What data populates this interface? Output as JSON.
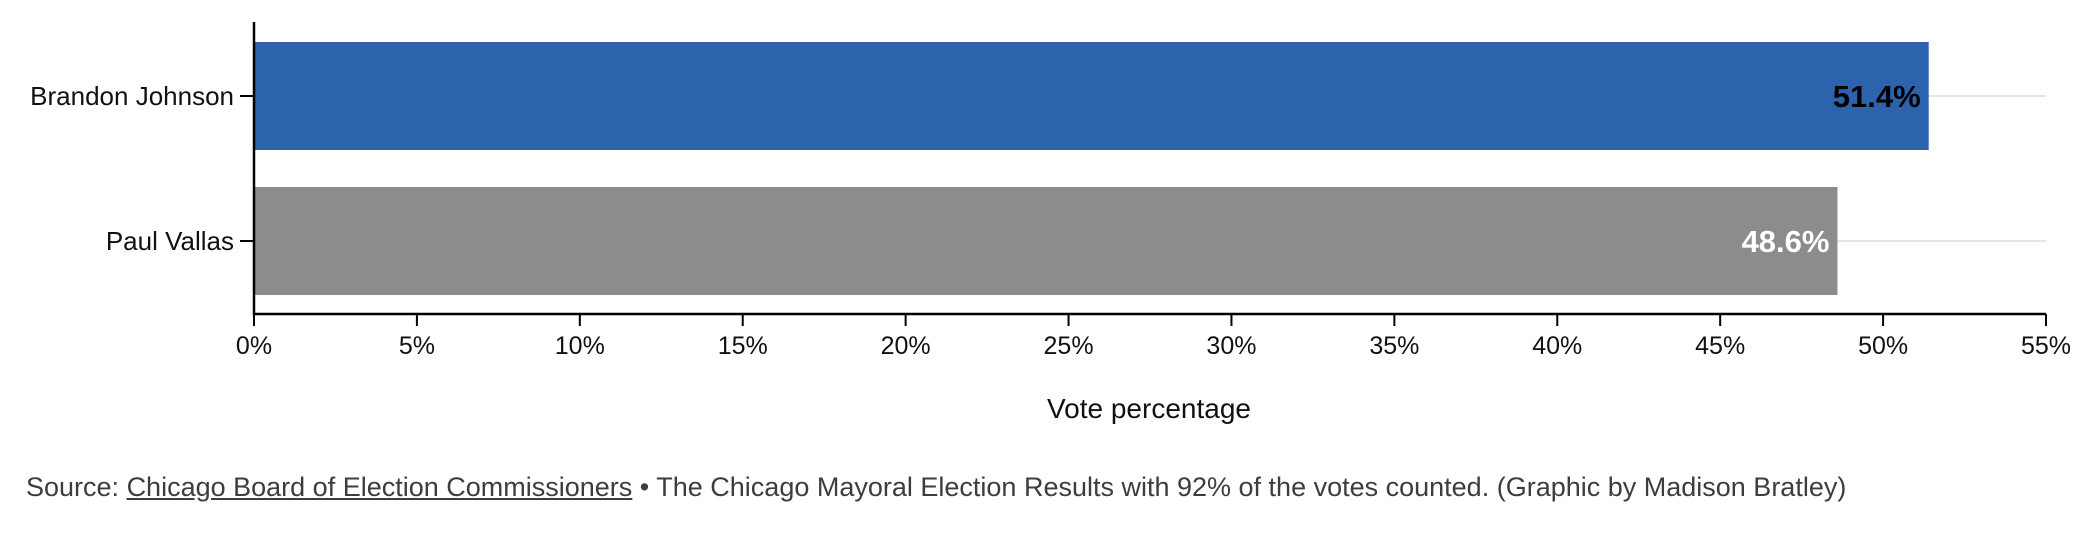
{
  "chart_data": {
    "type": "bar",
    "orientation": "horizontal",
    "categories": [
      "Brandon Johnson",
      "Paul Vallas"
    ],
    "values": [
      51.4,
      48.6
    ],
    "value_labels": [
      "51.4%",
      "48.6%"
    ],
    "colors": [
      "#2d63ad",
      "#8c8c8c"
    ],
    "value_label_colors": [
      "#000000",
      "#ffffff"
    ],
    "xlabel": "Vote percentage",
    "ylabel": "",
    "xlim": [
      0,
      55
    ],
    "xticks": [
      0,
      5,
      10,
      15,
      20,
      25,
      30,
      35,
      40,
      45,
      50,
      55
    ],
    "xtick_labels": [
      "0%",
      "5%",
      "10%",
      "15%",
      "20%",
      "25%",
      "30%",
      "35%",
      "40%",
      "45%",
      "50%",
      "55%"
    ],
    "grid": "horizontal light lines at each category",
    "legend": "none"
  },
  "footer": {
    "source_prefix": "Source: ",
    "source_link": "Chicago Board of Election Commissioners",
    "source_suffix": " • The Chicago Mayoral Election Results with 92% of the votes counted. (Graphic by Madison Bratley)"
  }
}
